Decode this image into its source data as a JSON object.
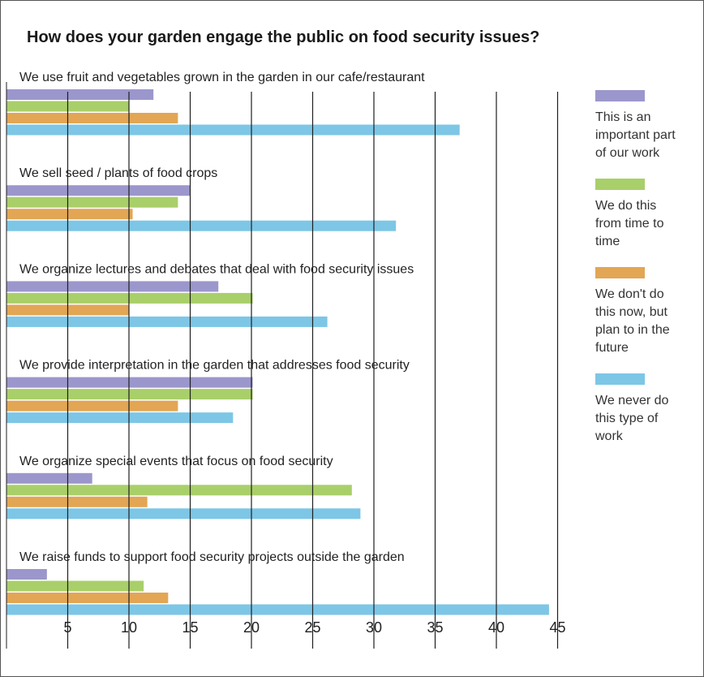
{
  "chart_data": {
    "type": "bar",
    "orientation": "horizontal",
    "title": "How does your garden engage the public on food security issues?",
    "categories": [
      "We use fruit and vegetables grown in the garden in our cafe/restaurant",
      "We sell seed / plants of food crops",
      "We organize lectures and debates that deal with food security issues",
      "We provide interpretation in the garden that addresses food security",
      "We organize special events that focus on food security",
      "We raise funds to support food security projects outside the garden"
    ],
    "series": [
      {
        "name": "This is an important part of our work",
        "color": "#9b97cc",
        "values": [
          12,
          15,
          17.3,
          20.1,
          7,
          3.3
        ]
      },
      {
        "name": "We do this from time to time",
        "color": "#a9cf6a",
        "values": [
          10,
          14,
          20.1,
          20.1,
          28.2,
          11.2
        ]
      },
      {
        "name": "We don't do this now, but plan to in the future",
        "color": "#e2a654",
        "values": [
          14,
          10.3,
          10,
          14,
          11.5,
          13.2
        ]
      },
      {
        "name": "We never do this type of work",
        "color": "#7dc6e6",
        "values": [
          37,
          31.8,
          26.2,
          18.5,
          28.9,
          44.3
        ]
      }
    ],
    "xlim": [
      0,
      45
    ],
    "xticks": [
      5,
      10,
      15,
      20,
      25,
      30,
      35,
      40,
      45
    ],
    "grid": true,
    "legend_position": "right"
  },
  "legend": {
    "items": [
      {
        "label_lines": [
          "This is an",
          "important part",
          "of our work"
        ],
        "color": "#9b97cc"
      },
      {
        "label_lines": [
          "We do this",
          "from time to",
          "time"
        ],
        "color": "#a9cf6a"
      },
      {
        "label_lines": [
          "We don't do",
          "this now, but",
          "plan to in the",
          "future"
        ],
        "color": "#e2a654"
      },
      {
        "label_lines": [
          "We never do",
          "this type of",
          "work"
        ],
        "color": "#7dc6e6"
      }
    ]
  }
}
